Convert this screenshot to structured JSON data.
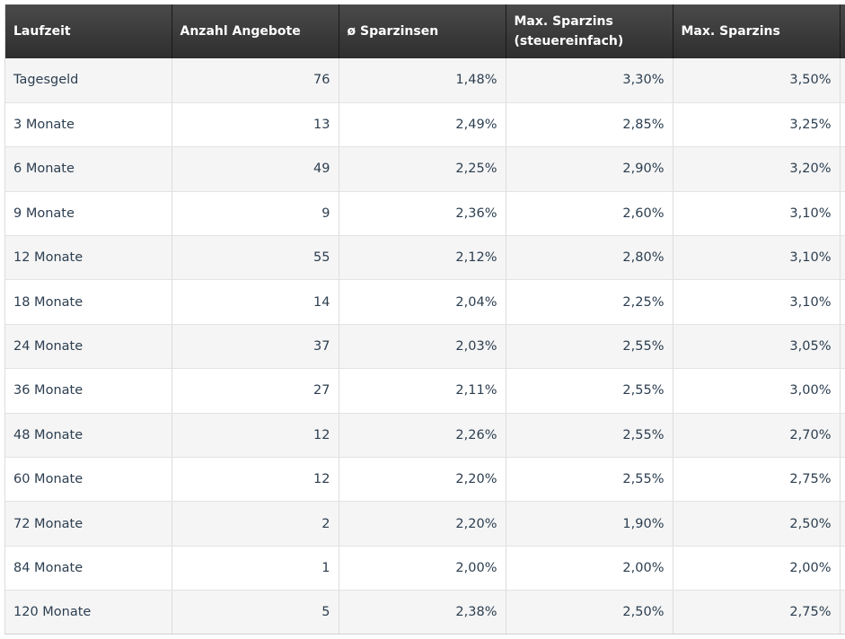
{
  "table": {
    "headers": [
      "Laufzeit",
      "Anzahl Angebote",
      "ø Sparzinsen",
      "Max. Sparzins (steuereinfach)",
      "Max. Sparzins"
    ],
    "rows": [
      [
        "Tagesgeld",
        "76",
        "1,48%",
        "3,30%",
        "3,50%"
      ],
      [
        "3 Monate",
        "13",
        "2,49%",
        "2,85%",
        "3,25%"
      ],
      [
        "6 Monate",
        "49",
        "2,25%",
        "2,90%",
        "3,20%"
      ],
      [
        "9 Monate",
        "9",
        "2,36%",
        "2,60%",
        "3,10%"
      ],
      [
        "12 Monate",
        "55",
        "2,12%",
        "2,80%",
        "3,10%"
      ],
      [
        "18 Monate",
        "14",
        "2,04%",
        "2,25%",
        "3,10%"
      ],
      [
        "24 Monate",
        "37",
        "2,03%",
        "2,55%",
        "3,05%"
      ],
      [
        "36 Monate",
        "27",
        "2,11%",
        "2,55%",
        "3,00%"
      ],
      [
        "48 Monate",
        "12",
        "2,26%",
        "2,55%",
        "2,70%"
      ],
      [
        "60 Monate",
        "12",
        "2,20%",
        "2,55%",
        "2,75%"
      ],
      [
        "72 Monate",
        "2",
        "2,20%",
        "1,90%",
        "2,50%"
      ],
      [
        "84 Monate",
        "1",
        "2,00%",
        "2,00%",
        "2,00%"
      ],
      [
        "120 Monate",
        "5",
        "2,38%",
        "2,50%",
        "2,75%"
      ]
    ]
  }
}
